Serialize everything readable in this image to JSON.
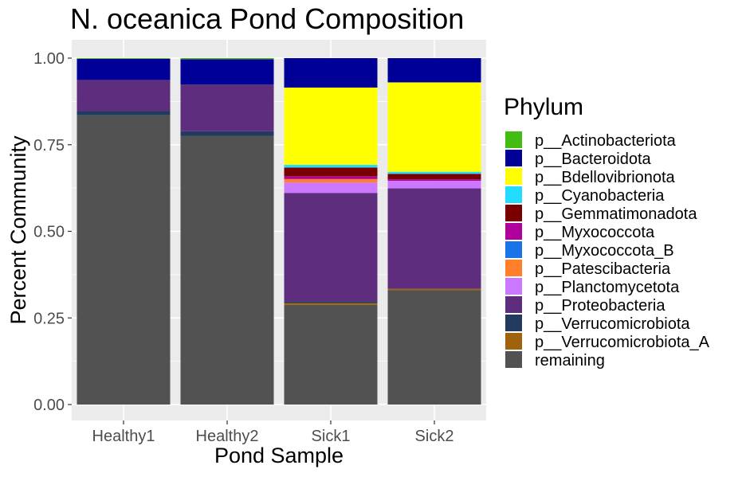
{
  "chart_data": {
    "type": "bar",
    "stacked": true,
    "title": "N. oceanica Pond Composition",
    "xlabel": "Pond Sample",
    "ylabel": "Percent Community",
    "categories": [
      "Healthy1",
      "Healthy2",
      "Sick1",
      "Sick2"
    ],
    "ylim": [
      0,
      1
    ],
    "yticks": [
      "0.00",
      "0.25",
      "0.50",
      "0.75",
      "1.00"
    ],
    "grid": true,
    "legend": {
      "title": "Phylum",
      "position": "right"
    },
    "series": [
      {
        "name": "remaining",
        "color": "#525252",
        "values": [
          0.835,
          0.775,
          0.288,
          0.33
        ]
      },
      {
        "name": "p__Verrucomicrobiota_A",
        "color": "#A0620A",
        "values": [
          0.0,
          0.0,
          0.005,
          0.004
        ]
      },
      {
        "name": "p__Verrucomicrobiota",
        "color": "#223A5E",
        "values": [
          0.012,
          0.014,
          0.005,
          0.0
        ]
      },
      {
        "name": "p__Proteobacteria",
        "color": "#5E2D7E",
        "values": [
          0.09,
          0.135,
          0.313,
          0.29
        ]
      },
      {
        "name": "p__Planctomycetota",
        "color": "#CC77FF",
        "values": [
          0.0,
          0.0,
          0.03,
          0.022
        ]
      },
      {
        "name": "p__Patescibacteria",
        "color": "#FF7F2A",
        "values": [
          0.0,
          0.0,
          0.01,
          0.0
        ]
      },
      {
        "name": "p__Myxococcota_B",
        "color": "#1874E8",
        "values": [
          0.0,
          0.0,
          0.0,
          0.0
        ]
      },
      {
        "name": "p__Myxococcota",
        "color": "#B0009C",
        "values": [
          0.0,
          0.0,
          0.008,
          0.004
        ]
      },
      {
        "name": "p__Gemmatimonadota",
        "color": "#7A0000",
        "values": [
          0.0,
          0.0,
          0.025,
          0.016
        ]
      },
      {
        "name": "p__Cyanobacteria",
        "color": "#22DDFF",
        "values": [
          0.0,
          0.0,
          0.008,
          0.006
        ]
      },
      {
        "name": "p__Bdellovibrionota",
        "color": "#FFFF00",
        "values": [
          0.0,
          0.0,
          0.223,
          0.258
        ]
      },
      {
        "name": "p__Bacteroidota",
        "color": "#000096",
        "values": [
          0.061,
          0.073,
          0.085,
          0.07
        ]
      },
      {
        "name": "p__Actinobacteriota",
        "color": "#44BB11",
        "values": [
          0.002,
          0.003,
          0.0,
          0.0
        ]
      }
    ],
    "legend_order": [
      "p__Actinobacteriota",
      "p__Bacteroidota",
      "p__Bdellovibrionota",
      "p__Cyanobacteria",
      "p__Gemmatimonadota",
      "p__Myxococcota",
      "p__Myxococcota_B",
      "p__Patescibacteria",
      "p__Planctomycetota",
      "p__Proteobacteria",
      "p__Verrucomicrobiota",
      "p__Verrucomicrobiota_A",
      "remaining"
    ]
  }
}
